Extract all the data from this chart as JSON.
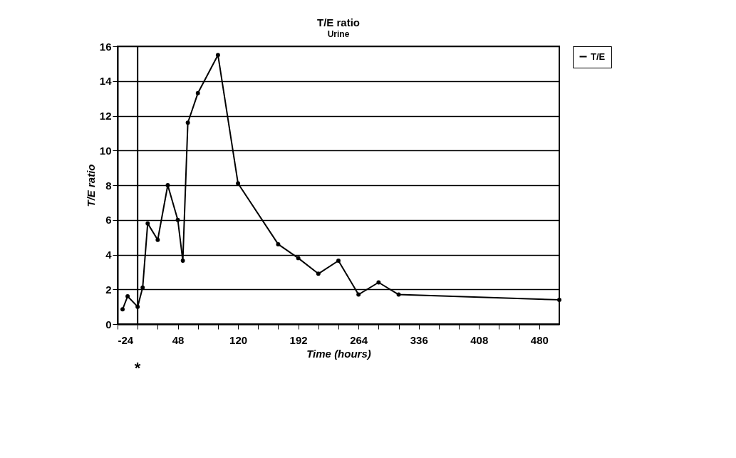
{
  "chart_data": {
    "type": "line",
    "title": "T/E ratio",
    "subtitle": "Urine",
    "xlabel": "Time (hours)",
    "ylabel": "T/E ratio",
    "x": [
      -18,
      -12,
      0,
      6,
      12,
      24,
      36,
      48,
      54,
      60,
      72,
      96,
      120,
      168,
      192,
      216,
      240,
      264,
      288,
      312,
      504
    ],
    "series": [
      {
        "name": "T/E",
        "color": "#000000",
        "values": [
          0.85,
          1.6,
          1.0,
          2.1,
          5.8,
          4.85,
          8.0,
          6.0,
          3.65,
          11.6,
          13.3,
          15.5,
          8.1,
          4.6,
          3.8,
          2.9,
          3.65,
          1.7,
          2.4,
          1.7,
          1.4
        ]
      }
    ],
    "xlim": [
      -24,
      504
    ],
    "xticks": [
      -24,
      {
        "value": 0,
        "label": null
      },
      {
        "value": 24,
        "label": null
      },
      48,
      {
        "value": 72,
        "label": null
      },
      {
        "value": 96,
        "label": null
      },
      120,
      {
        "value": 144,
        "label": null
      },
      {
        "value": 168,
        "label": null
      },
      192,
      {
        "value": 216,
        "label": null
      },
      {
        "value": 240,
        "label": null
      },
      264,
      {
        "value": 288,
        "label": null
      },
      {
        "value": 312,
        "label": null
      },
      336,
      {
        "value": 360,
        "label": null
      },
      {
        "value": 384,
        "label": null
      },
      408,
      {
        "value": 432,
        "label": null
      },
      {
        "value": 456,
        "label": null
      },
      480
    ],
    "ylim": [
      0,
      16
    ],
    "yticks": [
      0,
      2,
      4,
      6,
      8,
      10,
      12,
      14,
      16
    ],
    "ref_lines": [
      {
        "axis": "x",
        "value": 0,
        "color": "#000000"
      }
    ],
    "annotations": [
      "*"
    ],
    "grid": "y",
    "legend": "right",
    "marker": "circle",
    "line_style": "solid"
  }
}
